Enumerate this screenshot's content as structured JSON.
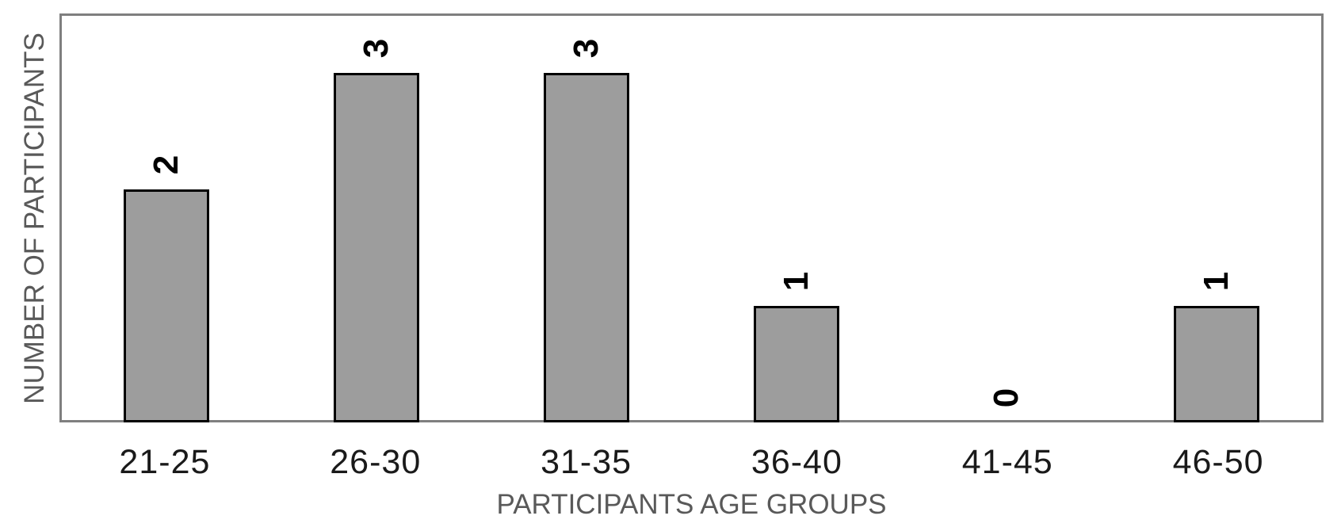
{
  "chart_data": {
    "type": "bar",
    "title": "",
    "categories": [
      "21-25",
      "26-30",
      "31-35",
      "36-40",
      "41-45",
      "46-50"
    ],
    "values": [
      2,
      3,
      3,
      1,
      0,
      1
    ],
    "data_labels": [
      "2",
      "3",
      "3",
      "1",
      "0",
      "1"
    ],
    "data_label_rotation_deg": -90,
    "xlabel": "PARTICIPANTS AGE GROUPS",
    "ylabel": "NUMBER OF PARTICIPANTS",
    "ylim": [
      0,
      3.5
    ],
    "y_ticks_visible": false,
    "grid": false,
    "legend": "none",
    "colors": {
      "bar_fill": "#9d9d9d",
      "bar_border": "#000000",
      "plot_border": "#7f7f7f",
      "axis_title": "#595959",
      "tick_label": "#1a1a1a",
      "data_label": "#000000",
      "background": "#ffffff"
    }
  }
}
